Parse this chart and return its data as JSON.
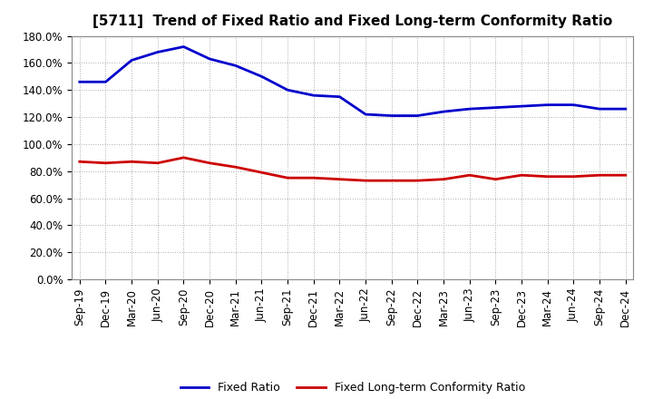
{
  "title": "[5711]  Trend of Fixed Ratio and Fixed Long-term Conformity Ratio",
  "x_labels": [
    "Sep-19",
    "Dec-19",
    "Mar-20",
    "Jun-20",
    "Sep-20",
    "Dec-20",
    "Mar-21",
    "Jun-21",
    "Sep-21",
    "Dec-21",
    "Mar-22",
    "Jun-22",
    "Sep-22",
    "Dec-22",
    "Mar-23",
    "Jun-23",
    "Sep-23",
    "Dec-23",
    "Mar-24",
    "Jun-24",
    "Sep-24",
    "Dec-24"
  ],
  "fixed_ratio": [
    1.46,
    1.46,
    1.62,
    1.68,
    1.72,
    1.63,
    1.58,
    1.5,
    1.4,
    1.36,
    1.35,
    1.22,
    1.21,
    1.21,
    1.24,
    1.26,
    1.27,
    1.28,
    1.29,
    1.29,
    1.26,
    1.26
  ],
  "fixed_lt_ratio": [
    0.87,
    0.86,
    0.87,
    0.86,
    0.9,
    0.86,
    0.83,
    0.79,
    0.75,
    0.75,
    0.74,
    0.73,
    0.73,
    0.73,
    0.74,
    0.77,
    0.74,
    0.77,
    0.76,
    0.76,
    0.77,
    0.77
  ],
  "ylim": [
    0.0,
    1.8
  ],
  "ytick_values": [
    0.0,
    0.2,
    0.4,
    0.6,
    0.8,
    1.0,
    1.2,
    1.4,
    1.6,
    1.8
  ],
  "ytick_labels": [
    "0.0%",
    "20.0%",
    "40.0%",
    "60.0%",
    "80.0%",
    "100.0%",
    "120.0%",
    "140.0%",
    "160.0%",
    "180.0%"
  ],
  "blue_color": "#0000cc",
  "red_color": "#cc0000",
  "bg_color": "#ffffff",
  "grid_color": "#aaaaaa",
  "legend_fixed_ratio": "Fixed Ratio",
  "legend_fixed_lt_ratio": "Fixed Long-term Conformity Ratio",
  "title_fontsize": 11,
  "tick_fontsize": 8.5,
  "ytick_fontsize": 8.5
}
